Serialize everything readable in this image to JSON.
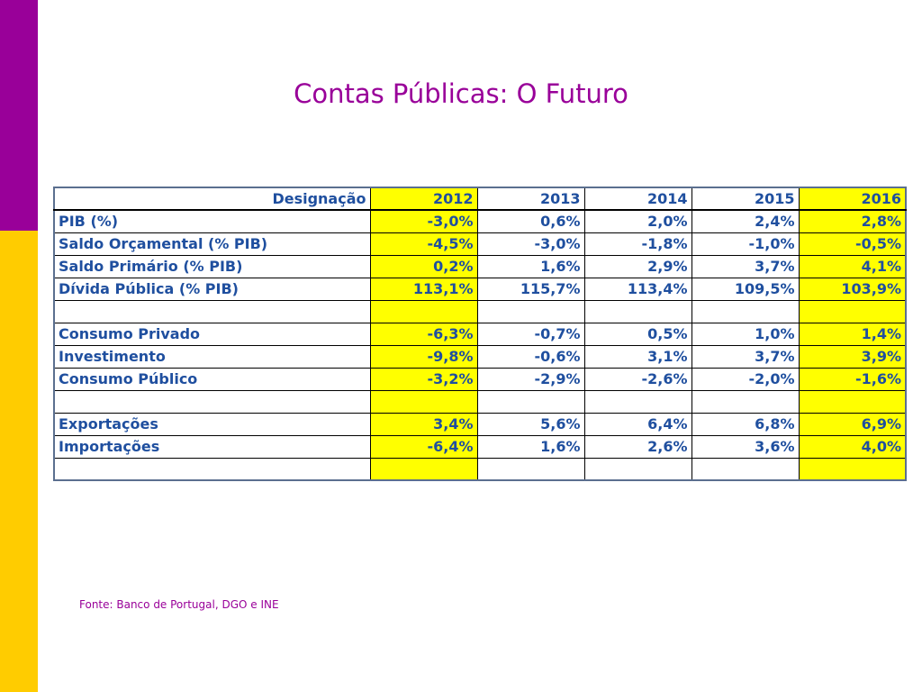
{
  "title": "Contas Públicas: O Futuro",
  "colors": {
    "accent_purple": "#990099",
    "accent_yellow": "#ffcc00",
    "highlight": "#ffff00",
    "text_blue": "#1f4f9f"
  },
  "table": {
    "header": [
      "Designação",
      "2012",
      "2013",
      "2014",
      "2015",
      "2016"
    ],
    "rows": [
      [
        "PIB (%)",
        "-3,0%",
        "0,6%",
        "2,0%",
        "2,4%",
        "2,8%"
      ],
      [
        "Saldo Orçamental (% PIB)",
        "-4,5%",
        "-3,0%",
        "-1,8%",
        "-1,0%",
        "-0,5%"
      ],
      [
        "Saldo Primário (% PIB)",
        "0,2%",
        "1,6%",
        "2,9%",
        "3,7%",
        "4,1%"
      ],
      [
        "Dívida Pública (% PIB)",
        "113,1%",
        "115,7%",
        "113,4%",
        "109,5%",
        "103,9%"
      ],
      [
        "",
        "",
        "",
        "",
        "",
        ""
      ],
      [
        "Consumo Privado",
        "-6,3%",
        "-0,7%",
        "0,5%",
        "1,0%",
        "1,4%"
      ],
      [
        "Investimento",
        "-9,8%",
        "-0,6%",
        "3,1%",
        "3,7%",
        "3,9%"
      ],
      [
        "Consumo Público",
        "-3,2%",
        "-2,9%",
        "-2,6%",
        "-2,0%",
        "-1,6%"
      ],
      [
        "",
        "",
        "",
        "",
        "",
        ""
      ],
      [
        "Exportações",
        "3,4%",
        "5,6%",
        "6,4%",
        "6,8%",
        "6,9%"
      ],
      [
        "Importações",
        "-6,4%",
        "1,6%",
        "2,6%",
        "3,6%",
        "4,0%"
      ],
      [
        "",
        "",
        "",
        "",
        "",
        ""
      ]
    ]
  },
  "source": "Fonte: Banco de Portugal, DGO e INE"
}
